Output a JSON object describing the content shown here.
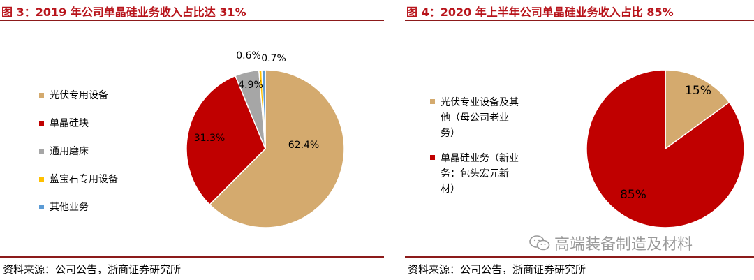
{
  "charts": [
    {
      "title": "图 3：2019 年公司单晶硅业务收入占比达 31%",
      "source": "资料来源：公司公告，浙商证券研究所"
    },
    {
      "title": "图 4：2020 年上半年公司单晶硅业务收入占比 85%",
      "source": "资料来源：公司公告，浙商证券研究所",
      "watermark": "高端装备制造及材料"
    }
  ],
  "chart_data": [
    {
      "type": "pie",
      "title": "图 3：2019 年公司单晶硅业务收入占比达 31%",
      "slices": [
        {
          "name": "光伏专用设备",
          "value": 62.4,
          "label": "62.4%",
          "color": "#d4aa6e"
        },
        {
          "name": "单晶硅块",
          "value": 31.3,
          "label": "31.3%",
          "color": "#c00000"
        },
        {
          "name": "通用磨床",
          "value": 4.9,
          "label": "4.9%",
          "color": "#a6a6a6"
        },
        {
          "name": "蓝宝石专用设备",
          "value": 0.6,
          "label": "0.6%",
          "color": "#ffc000"
        },
        {
          "name": "其他业务",
          "value": 0.7,
          "label": "0.7%",
          "color": "#5b9bd5"
        }
      ],
      "legend_position": "left"
    },
    {
      "type": "pie",
      "title": "图 4：2020 年上半年公司单晶硅业务收入占比 85%",
      "slices": [
        {
          "name": "光伏专业设备及其他（母公司老业务）",
          "legend_lines": [
            "光伏专业设备及其",
            "他（母公司老业",
            "务）"
          ],
          "value": 15,
          "label": "15%",
          "color": "#d4aa6e"
        },
        {
          "name": "单晶硅业务（新业务：包头宏元新材）",
          "legend_lines": [
            "单晶硅业务（新业",
            "务：包头宏元新",
            "材）"
          ],
          "value": 85,
          "label": "85%",
          "color": "#c00000"
        }
      ],
      "legend_position": "left"
    }
  ]
}
